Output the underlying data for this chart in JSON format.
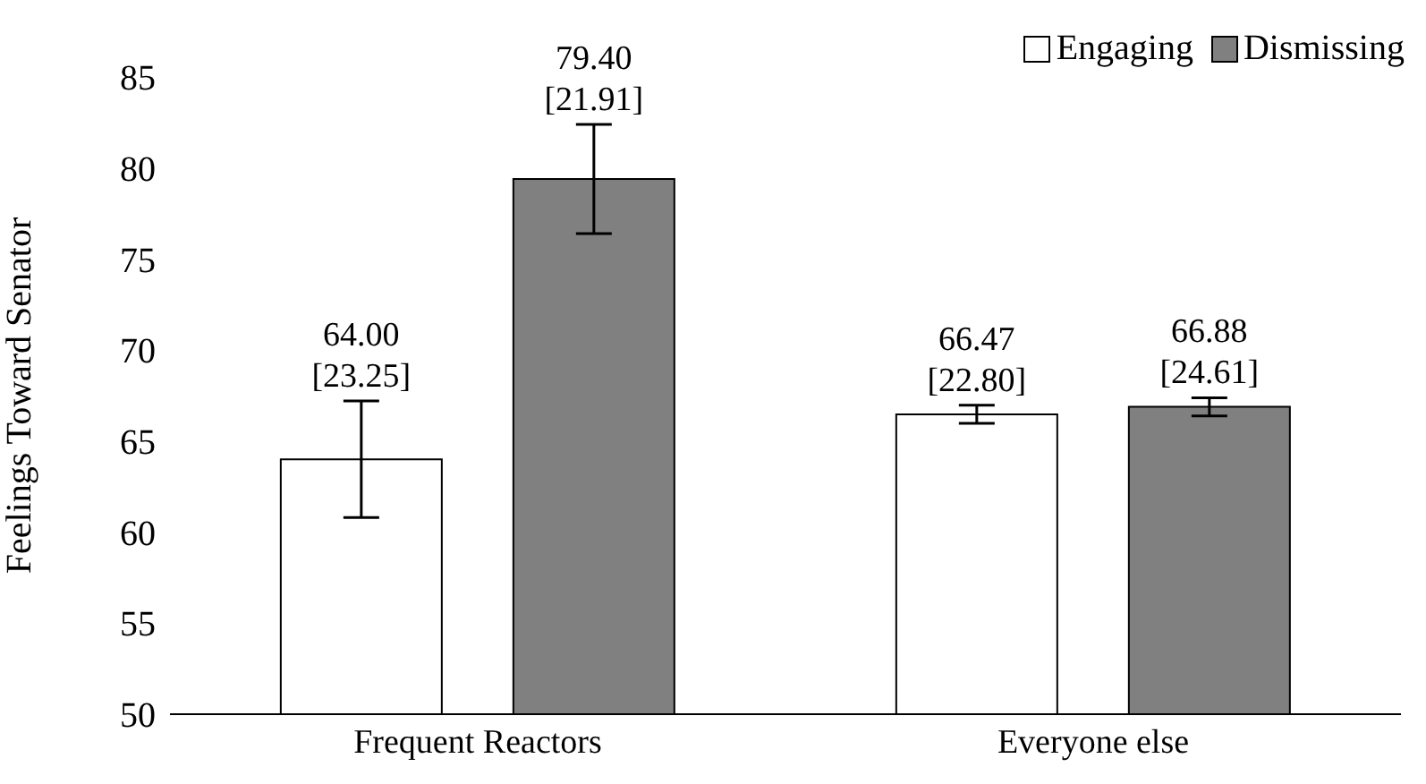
{
  "chart_data": {
    "type": "bar",
    "ylabel": "Feelings Toward Senator",
    "categories": [
      "Frequent Reactors",
      "Everyone else"
    ],
    "series": [
      {
        "name": "Engaging",
        "color": "#ffffff",
        "values": [
          64.0,
          66.47
        ],
        "errors": [
          3.2,
          0.5
        ],
        "value_labels": [
          "64.00 [23.25]",
          "66.47 [22.80]"
        ]
      },
      {
        "name": "Dismissing",
        "color": "#808080",
        "values": [
          79.4,
          66.88
        ],
        "errors": [
          3.0,
          0.5
        ],
        "value_labels": [
          "79.40 [21.91]",
          "66.88 [24.61]"
        ]
      }
    ],
    "ylim": [
      50,
      85
    ],
    "yticks": [
      50,
      55,
      60,
      65,
      70,
      75,
      80,
      85
    ],
    "grid": false,
    "legend": "top right"
  }
}
